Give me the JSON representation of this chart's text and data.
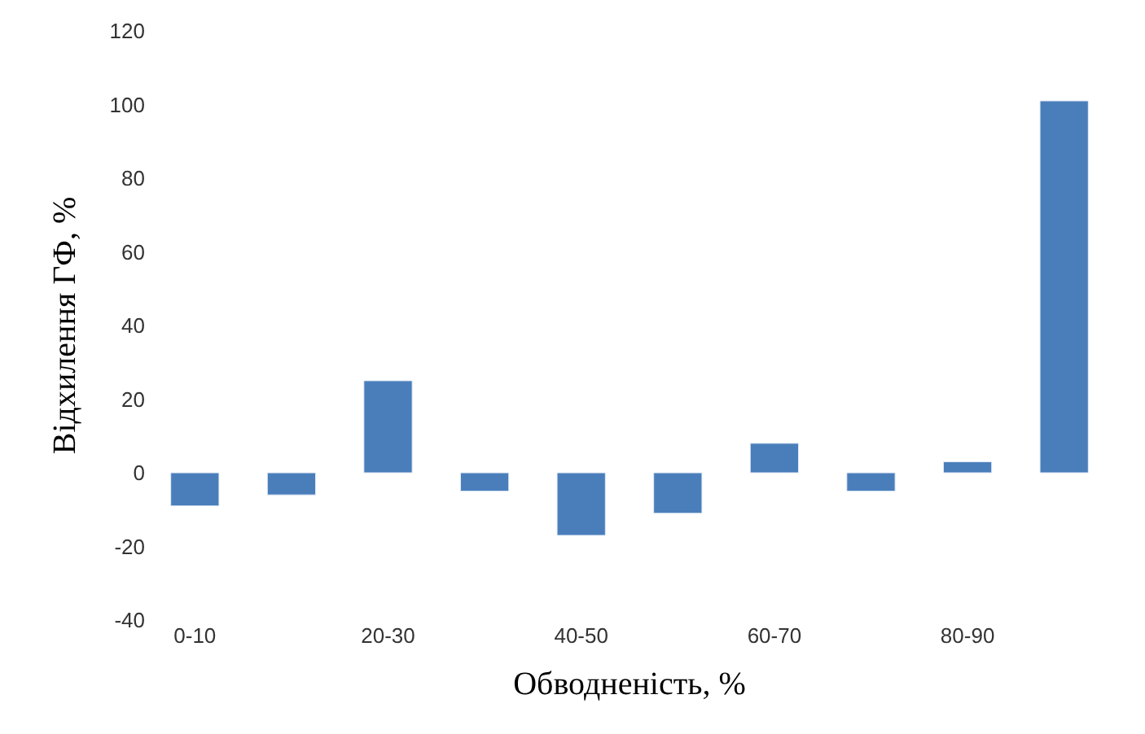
{
  "chart_data": {
    "type": "bar",
    "xlabel": "Обводненість, %",
    "ylabel": "Відхилення ГФ, %",
    "categories": [
      "0-10",
      null,
      "20-30",
      null,
      "40-50",
      null,
      "60-70",
      null,
      "80-90",
      null
    ],
    "values": [
      -9,
      -6,
      25,
      -5,
      -17,
      -11,
      8,
      -5,
      3,
      101
    ],
    "color": "#4a7ebb",
    "ylim": [
      -40,
      120
    ],
    "yticks": [
      -40,
      -20,
      0,
      20,
      40,
      60,
      80,
      100,
      120
    ],
    "legend": false
  }
}
